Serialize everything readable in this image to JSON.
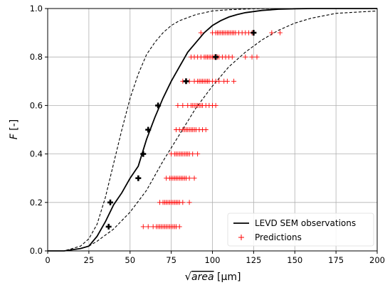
{
  "chart_data": {
    "type": "line",
    "xlim": [
      0,
      200
    ],
    "ylim": [
      0,
      1
    ],
    "xticks": [
      0,
      25,
      50,
      75,
      100,
      125,
      150,
      175,
      200
    ],
    "yticks": [
      0.0,
      0.2,
      0.4,
      0.6,
      0.8,
      1.0
    ],
    "xtick_labels": [
      "0",
      "25",
      "50",
      "75",
      "100",
      "125",
      "150",
      "175",
      "200"
    ],
    "ytick_labels": [
      "0.0",
      "0.2",
      "0.4",
      "0.6",
      "0.8",
      "1.0"
    ],
    "xlabel_prefix": "√",
    "xlabel_var": "area",
    "xlabel_unit": " [µm]",
    "ylabel_var": "F",
    "ylabel_unit": " [-]",
    "grid": true,
    "legend_position": "bottom-right",
    "series": [
      {
        "name": "LEVD SEM observations",
        "style": "solid",
        "color": "#000000",
        "x": [
          0,
          10,
          20,
          25,
          30,
          35,
          40,
          45,
          50,
          55,
          60,
          65,
          70,
          75,
          80,
          85,
          90,
          95,
          100,
          105,
          110,
          115,
          120,
          130,
          140,
          150,
          160,
          175,
          200
        ],
        "y": [
          0.0,
          0.0,
          0.01,
          0.02,
          0.06,
          0.12,
          0.19,
          0.24,
          0.3,
          0.35,
          0.46,
          0.55,
          0.63,
          0.7,
          0.76,
          0.82,
          0.86,
          0.9,
          0.93,
          0.95,
          0.965,
          0.975,
          0.983,
          0.992,
          0.997,
          0.999,
          1.0,
          1.0,
          1.0
        ]
      },
      {
        "name": "",
        "style": "dashed",
        "color": "#000000",
        "x": [
          0,
          10,
          20,
          25,
          30,
          35,
          40,
          45,
          50,
          55,
          60,
          65,
          70,
          75,
          80,
          90,
          100,
          110,
          125,
          150,
          200
        ],
        "y": [
          0.0,
          0.0,
          0.02,
          0.05,
          0.11,
          0.22,
          0.36,
          0.5,
          0.63,
          0.73,
          0.81,
          0.86,
          0.9,
          0.93,
          0.95,
          0.975,
          0.99,
          0.995,
          0.999,
          1.0,
          1.0
        ]
      },
      {
        "name": "",
        "style": "dashed",
        "color": "#000000",
        "x": [
          0,
          10,
          20,
          25,
          30,
          40,
          50,
          60,
          70,
          80,
          90,
          100,
          110,
          120,
          130,
          140,
          150,
          160,
          175,
          200
        ],
        "y": [
          0.0,
          0.0,
          0.01,
          0.02,
          0.04,
          0.09,
          0.16,
          0.25,
          0.37,
          0.48,
          0.59,
          0.68,
          0.76,
          0.82,
          0.87,
          0.91,
          0.94,
          0.96,
          0.98,
          0.99
        ]
      }
    ],
    "observations": {
      "name": "",
      "marker": "plus-bold",
      "color": "#000000",
      "points": [
        [
          37,
          0.1
        ],
        [
          38,
          0.2
        ],
        [
          55,
          0.3
        ],
        [
          58,
          0.4
        ],
        [
          61,
          0.5
        ],
        [
          67,
          0.6
        ],
        [
          84,
          0.7
        ],
        [
          102,
          0.8
        ],
        [
          125,
          0.9
        ]
      ]
    },
    "predictions": {
      "name": "Predictions",
      "marker": "plus",
      "color": "#ff0000",
      "points": [
        [
          58,
          0.1
        ],
        [
          61,
          0.1
        ],
        [
          64,
          0.1
        ],
        [
          66,
          0.1
        ],
        [
          67,
          0.1
        ],
        [
          68,
          0.1
        ],
        [
          69,
          0.1
        ],
        [
          70,
          0.1
        ],
        [
          71,
          0.1
        ],
        [
          72,
          0.1
        ],
        [
          73,
          0.1
        ],
        [
          74,
          0.1
        ],
        [
          75,
          0.1
        ],
        [
          76,
          0.1
        ],
        [
          77,
          0.1
        ],
        [
          78,
          0.1
        ],
        [
          80,
          0.1
        ],
        [
          68,
          0.2
        ],
        [
          70,
          0.2
        ],
        [
          71,
          0.2
        ],
        [
          72,
          0.2
        ],
        [
          73,
          0.2
        ],
        [
          74,
          0.2
        ],
        [
          75,
          0.2
        ],
        [
          76,
          0.2
        ],
        [
          77,
          0.2
        ],
        [
          78,
          0.2
        ],
        [
          79,
          0.2
        ],
        [
          80,
          0.2
        ],
        [
          82,
          0.2
        ],
        [
          86,
          0.2
        ],
        [
          72,
          0.3
        ],
        [
          74,
          0.3
        ],
        [
          75,
          0.3
        ],
        [
          76,
          0.3
        ],
        [
          77,
          0.3
        ],
        [
          78,
          0.3
        ],
        [
          79,
          0.3
        ],
        [
          80,
          0.3
        ],
        [
          81,
          0.3
        ],
        [
          82,
          0.3
        ],
        [
          83,
          0.3
        ],
        [
          84,
          0.3
        ],
        [
          86,
          0.3
        ],
        [
          89,
          0.3
        ],
        [
          75,
          0.4
        ],
        [
          77,
          0.4
        ],
        [
          78,
          0.4
        ],
        [
          79,
          0.4
        ],
        [
          80,
          0.4
        ],
        [
          81,
          0.4
        ],
        [
          82,
          0.4
        ],
        [
          83,
          0.4
        ],
        [
          84,
          0.4
        ],
        [
          85,
          0.4
        ],
        [
          86,
          0.4
        ],
        [
          88,
          0.4
        ],
        [
          91,
          0.4
        ],
        [
          78,
          0.5
        ],
        [
          80,
          0.5
        ],
        [
          82,
          0.5
        ],
        [
          83,
          0.5
        ],
        [
          84,
          0.5
        ],
        [
          85,
          0.5
        ],
        [
          86,
          0.5
        ],
        [
          87,
          0.5
        ],
        [
          88,
          0.5
        ],
        [
          89,
          0.5
        ],
        [
          90,
          0.5
        ],
        [
          92,
          0.5
        ],
        [
          94,
          0.5
        ],
        [
          96,
          0.5
        ],
        [
          79,
          0.6
        ],
        [
          82,
          0.6
        ],
        [
          85,
          0.6
        ],
        [
          87,
          0.6
        ],
        [
          88,
          0.6
        ],
        [
          89,
          0.6
        ],
        [
          90,
          0.6
        ],
        [
          91,
          0.6
        ],
        [
          92,
          0.6
        ],
        [
          93,
          0.6
        ],
        [
          94,
          0.6
        ],
        [
          96,
          0.6
        ],
        [
          98,
          0.6
        ],
        [
          100,
          0.6
        ],
        [
          102,
          0.6
        ],
        [
          82,
          0.7
        ],
        [
          86,
          0.7
        ],
        [
          89,
          0.7
        ],
        [
          91,
          0.7
        ],
        [
          92,
          0.7
        ],
        [
          93,
          0.7
        ],
        [
          94,
          0.7
        ],
        [
          95,
          0.7
        ],
        [
          96,
          0.7
        ],
        [
          97,
          0.7
        ],
        [
          98,
          0.7
        ],
        [
          100,
          0.7
        ],
        [
          102,
          0.7
        ],
        [
          104,
          0.7
        ],
        [
          107,
          0.7
        ],
        [
          109,
          0.7
        ],
        [
          113,
          0.7
        ],
        [
          87,
          0.8
        ],
        [
          89,
          0.8
        ],
        [
          91,
          0.8
        ],
        [
          93,
          0.8
        ],
        [
          95,
          0.8
        ],
        [
          96,
          0.8
        ],
        [
          97,
          0.8
        ],
        [
          98,
          0.8
        ],
        [
          99,
          0.8
        ],
        [
          100,
          0.8
        ],
        [
          101,
          0.8
        ],
        [
          103,
          0.8
        ],
        [
          104,
          0.8
        ],
        [
          106,
          0.8
        ],
        [
          108,
          0.8
        ],
        [
          110,
          0.8
        ],
        [
          112,
          0.8
        ],
        [
          120,
          0.8
        ],
        [
          124,
          0.8
        ],
        [
          127,
          0.8
        ],
        [
          93,
          0.9
        ],
        [
          100,
          0.9
        ],
        [
          102,
          0.9
        ],
        [
          103,
          0.9
        ],
        [
          104,
          0.9
        ],
        [
          105,
          0.9
        ],
        [
          106,
          0.9
        ],
        [
          107,
          0.9
        ],
        [
          108,
          0.9
        ],
        [
          109,
          0.9
        ],
        [
          110,
          0.9
        ],
        [
          111,
          0.9
        ],
        [
          112,
          0.9
        ],
        [
          113,
          0.9
        ],
        [
          114,
          0.9
        ],
        [
          116,
          0.9
        ],
        [
          118,
          0.9
        ],
        [
          120,
          0.9
        ],
        [
          122,
          0.9
        ],
        [
          124,
          0.9
        ],
        [
          136,
          0.9
        ],
        [
          141,
          0.9
        ]
      ]
    }
  }
}
